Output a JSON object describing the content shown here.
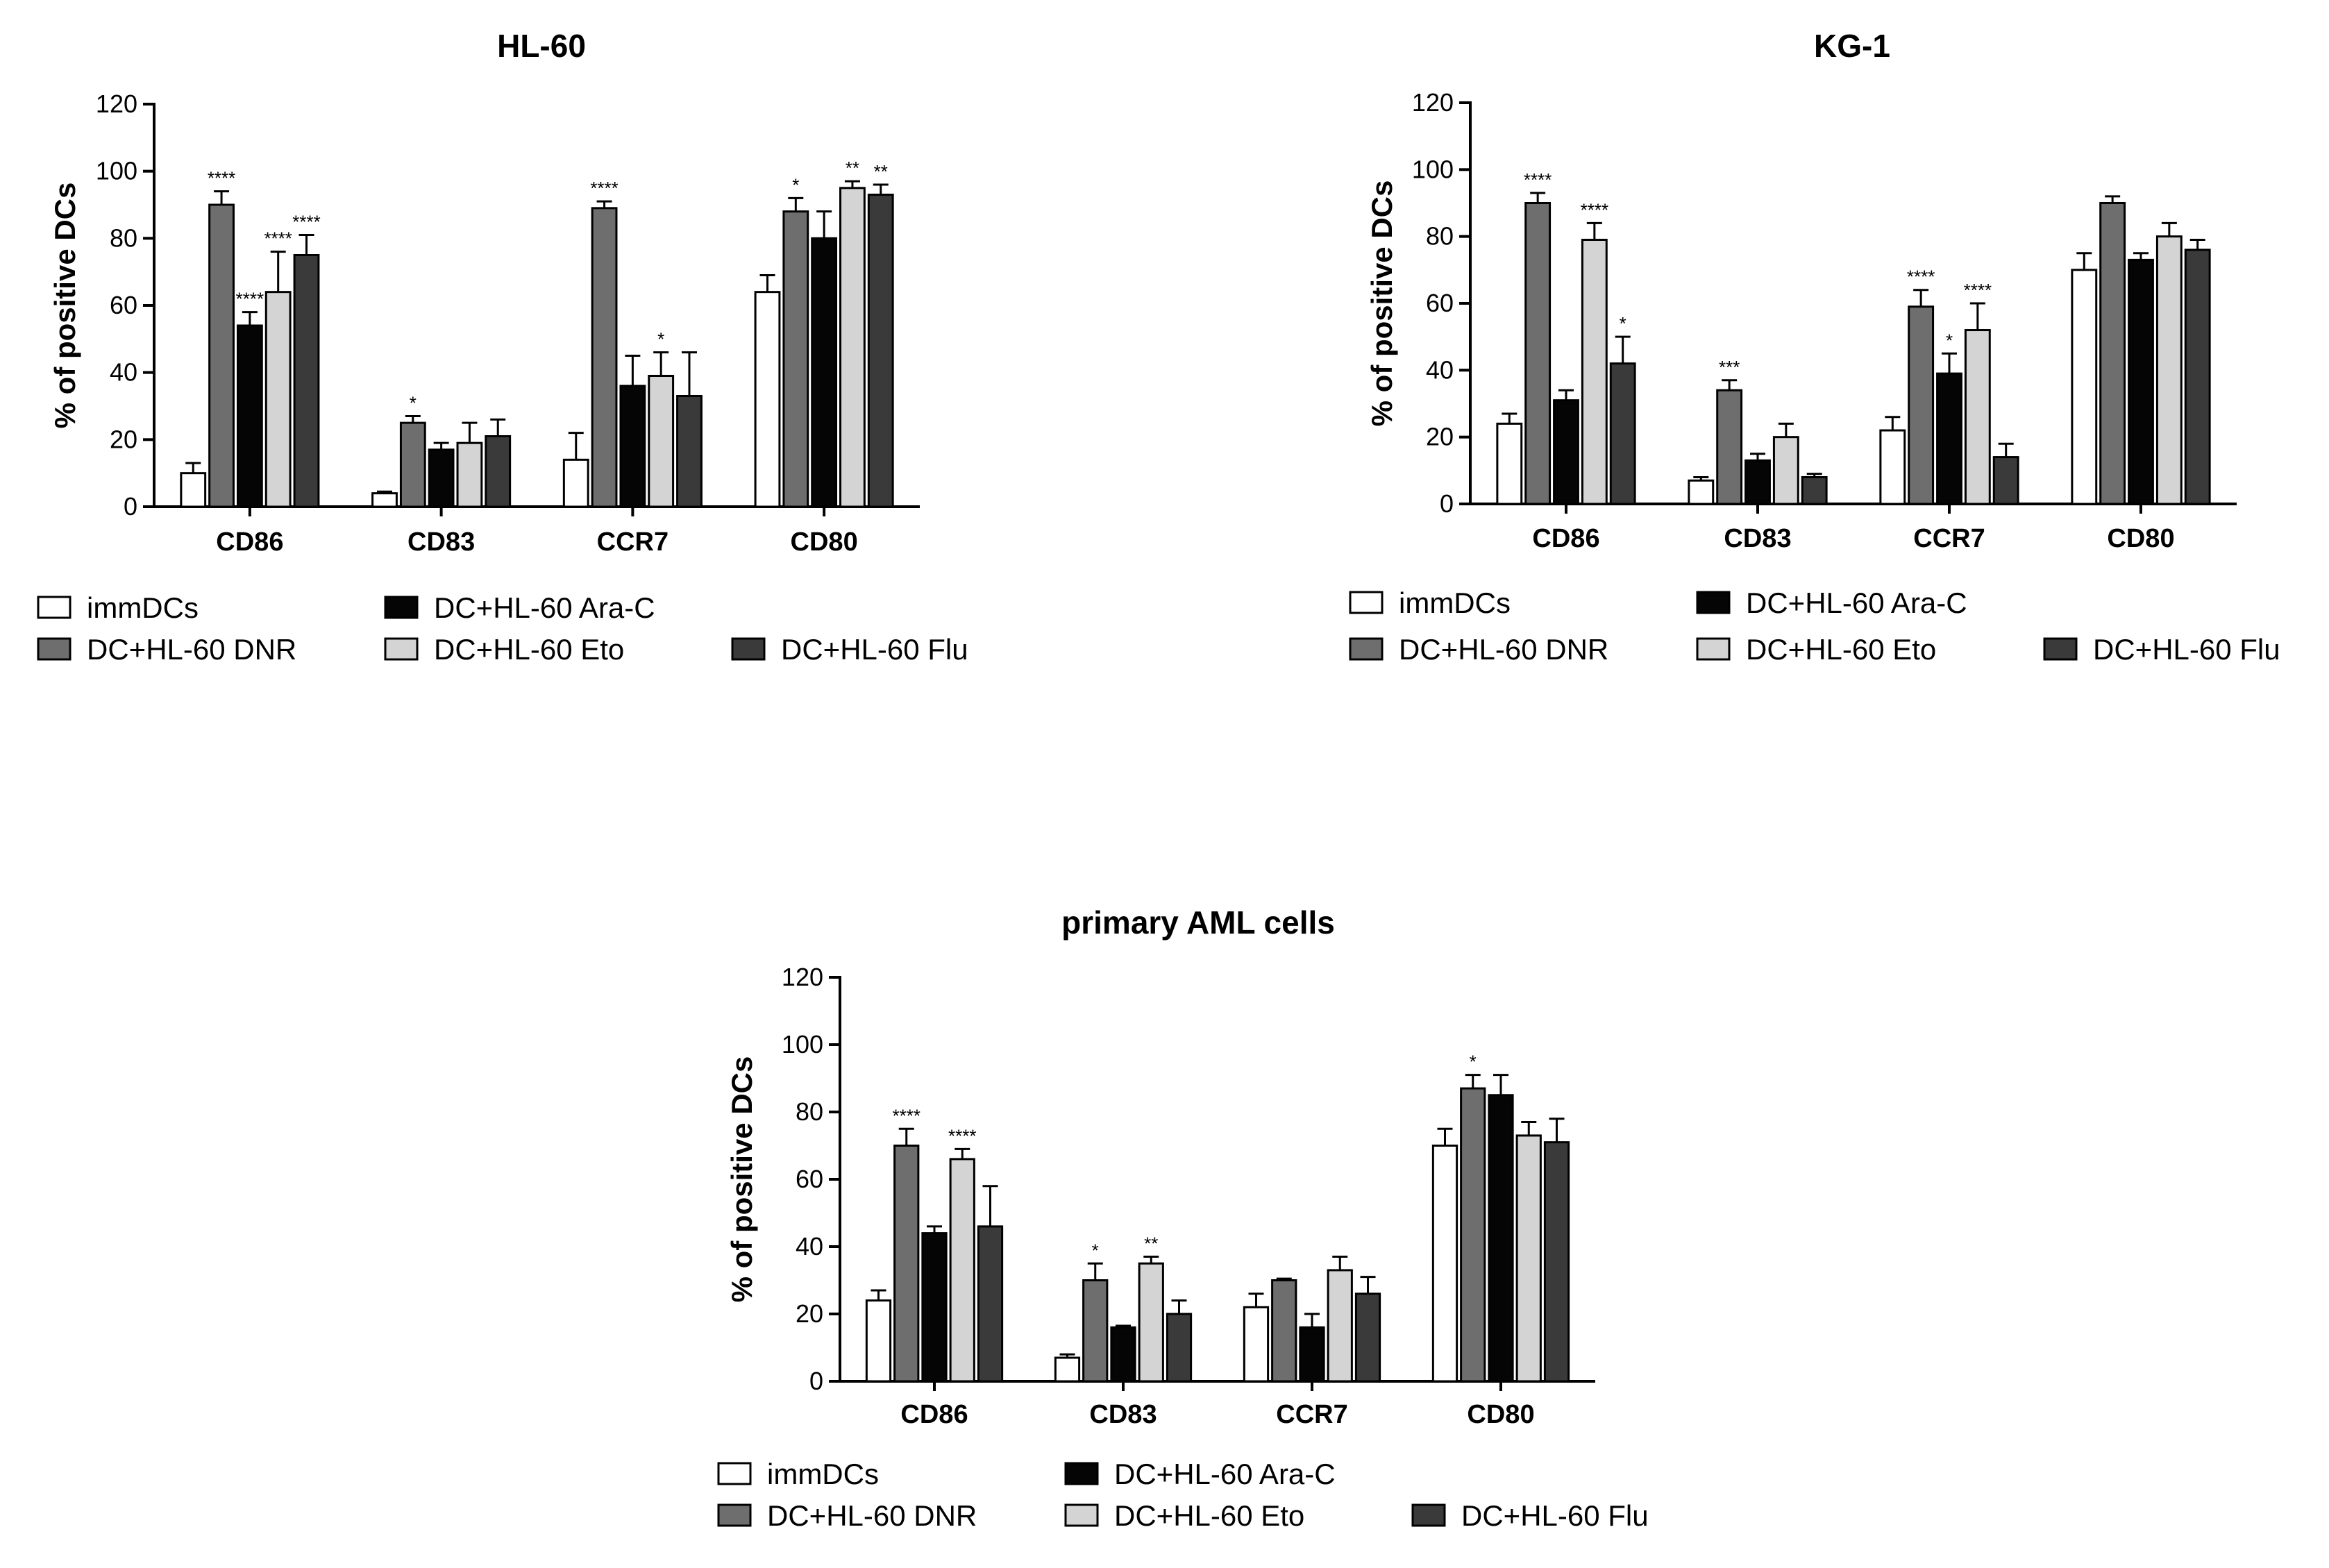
{
  "colors": {
    "immDCs": "#ffffff",
    "DNR": "#6e6e6e",
    "AraC": "#050505",
    "Eto": "#d4d4d4",
    "Flu": "#3a3a3a"
  },
  "chart_data": [
    {
      "type": "bar",
      "title": "HL-60",
      "xlabel": "",
      "ylabel": "% of positive DCs",
      "ylim": [
        0,
        120
      ],
      "yticks": [
        0,
        20,
        40,
        60,
        80,
        100,
        120
      ],
      "categories": [
        "CD86",
        "CD83",
        "CCR7",
        "CD80"
      ],
      "series": [
        {
          "name": "immDCs",
          "color_key": "immDCs",
          "values": [
            10,
            4,
            14,
            64
          ],
          "errors": [
            3,
            0.5,
            8,
            5
          ],
          "sig": [
            "",
            "",
            "",
            ""
          ]
        },
        {
          "name": "DC+HL-60 DNR",
          "color_key": "DNR",
          "values": [
            90,
            25,
            89,
            88
          ],
          "errors": [
            4,
            2,
            2,
            4
          ],
          "sig": [
            "****",
            "*",
            "****",
            "*"
          ]
        },
        {
          "name": "DC+HL-60 Ara-C",
          "color_key": "AraC",
          "values": [
            54,
            17,
            36,
            80
          ],
          "errors": [
            4,
            2,
            9,
            8
          ],
          "sig": [
            "****",
            "",
            "",
            ""
          ]
        },
        {
          "name": "DC+HL-60 Eto",
          "color_key": "Eto",
          "values": [
            64,
            19,
            39,
            95
          ],
          "errors": [
            12,
            6,
            7,
            2
          ],
          "sig": [
            "****",
            "",
            "*",
            "**"
          ]
        },
        {
          "name": "DC+HL-60 Flu",
          "color_key": "Flu",
          "values": [
            75,
            21,
            33,
            93
          ],
          "errors": [
            6,
            5,
            13,
            3
          ],
          "sig": [
            "****",
            "",
            "",
            "**"
          ]
        }
      ]
    },
    {
      "type": "bar",
      "title": "KG-1",
      "xlabel": "",
      "ylabel": "% of positive DCs",
      "ylim": [
        0,
        120
      ],
      "yticks": [
        0,
        20,
        40,
        60,
        80,
        100,
        120
      ],
      "categories": [
        "CD86",
        "CD83",
        "CCR7",
        "CD80"
      ],
      "series": [
        {
          "name": "immDCs",
          "color_key": "immDCs",
          "values": [
            24,
            7,
            22,
            70
          ],
          "errors": [
            3,
            1,
            4,
            5
          ],
          "sig": [
            "",
            "",
            "",
            ""
          ]
        },
        {
          "name": "DC+HL-60 DNR",
          "color_key": "DNR",
          "values": [
            90,
            34,
            59,
            90
          ],
          "errors": [
            3,
            3,
            5,
            2
          ],
          "sig": [
            "****",
            "***",
            "****",
            ""
          ]
        },
        {
          "name": "DC+HL-60 Ara-C",
          "color_key": "AraC",
          "values": [
            31,
            13,
            39,
            73
          ],
          "errors": [
            3,
            2,
            6,
            2
          ],
          "sig": [
            "",
            "",
            "*",
            ""
          ]
        },
        {
          "name": "DC+HL-60 Eto",
          "color_key": "Eto",
          "values": [
            79,
            20,
            52,
            80
          ],
          "errors": [
            5,
            4,
            8,
            4
          ],
          "sig": [
            "****",
            "",
            "****",
            ""
          ]
        },
        {
          "name": "DC+HL-60 Flu",
          "color_key": "Flu",
          "values": [
            42,
            8,
            14,
            76
          ],
          "errors": [
            8,
            1,
            4,
            3
          ],
          "sig": [
            "*",
            "",
            "",
            ""
          ]
        }
      ]
    },
    {
      "type": "bar",
      "title": "primary AML cells",
      "xlabel": "",
      "ylabel": "% of positive DCs",
      "ylim": [
        0,
        120
      ],
      "yticks": [
        0,
        20,
        40,
        60,
        80,
        100,
        120
      ],
      "categories": [
        "CD86",
        "CD83",
        "CCR7",
        "CD80"
      ],
      "series": [
        {
          "name": "immDCs",
          "color_key": "immDCs",
          "values": [
            24,
            7,
            22,
            70
          ],
          "errors": [
            3,
            1,
            4,
            5
          ],
          "sig": [
            "",
            "",
            "",
            ""
          ]
        },
        {
          "name": "DC+HL-60 DNR",
          "color_key": "DNR",
          "values": [
            70,
            30,
            30,
            87
          ],
          "errors": [
            5,
            5,
            0.5,
            4
          ],
          "sig": [
            "****",
            "*",
            "",
            "*"
          ]
        },
        {
          "name": "DC+HL-60 Ara-C",
          "color_key": "AraC",
          "values": [
            44,
            16,
            16,
            85
          ],
          "errors": [
            2,
            0.5,
            4,
            6
          ],
          "sig": [
            "",
            "",
            "",
            ""
          ]
        },
        {
          "name": "DC+HL-60 Eto",
          "color_key": "Eto",
          "values": [
            66,
            35,
            33,
            73
          ],
          "errors": [
            3,
            2,
            4,
            4
          ],
          "sig": [
            "****",
            "**",
            "",
            ""
          ]
        },
        {
          "name": "DC+HL-60 Flu",
          "color_key": "Flu",
          "values": [
            46,
            20,
            26,
            71
          ],
          "errors": [
            12,
            4,
            5,
            7
          ],
          "sig": [
            "",
            "",
            "",
            ""
          ]
        }
      ]
    }
  ]
}
